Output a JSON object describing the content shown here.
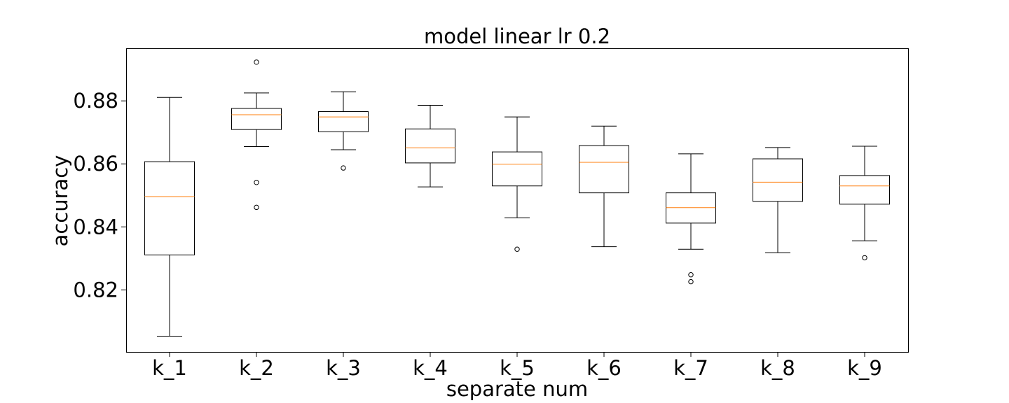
{
  "chart_data": {
    "type": "box",
    "title": "model linear lr 0.2",
    "xlabel": "separate num",
    "ylabel": "accuracy",
    "ylim": [
      0.8003,
      0.8967
    ],
    "yticks": [
      0.82,
      0.84,
      0.86,
      0.88
    ],
    "ytick_labels": [
      "0.82",
      "0.84",
      "0.86",
      "0.88"
    ],
    "grid": false,
    "colors": {
      "box": "#000000",
      "median": "#ff7f0e",
      "background": "#ffffff"
    },
    "categories": [
      "k_1",
      "k_2",
      "k_3",
      "k_4",
      "k_5",
      "k_6",
      "k_7",
      "k_8",
      "k_9"
    ],
    "boxes": [
      {
        "label": "k_1",
        "whisker_low": 0.8053,
        "q1": 0.8311,
        "median": 0.8496,
        "q3": 0.8607,
        "whisker_high": 0.8811,
        "outliers": []
      },
      {
        "label": "k_2",
        "whisker_low": 0.8655,
        "q1": 0.8709,
        "median": 0.8756,
        "q3": 0.8776,
        "whisker_high": 0.8825,
        "outliers": [
          0.8923,
          0.8541,
          0.8462
        ]
      },
      {
        "label": "k_3",
        "whisker_low": 0.8645,
        "q1": 0.8702,
        "median": 0.8749,
        "q3": 0.8766,
        "whisker_high": 0.8829,
        "outliers": [
          0.8587
        ]
      },
      {
        "label": "k_4",
        "whisker_low": 0.8527,
        "q1": 0.8603,
        "median": 0.8651,
        "q3": 0.8711,
        "whisker_high": 0.8786,
        "outliers": []
      },
      {
        "label": "k_5",
        "whisker_low": 0.8429,
        "q1": 0.853,
        "median": 0.8599,
        "q3": 0.8638,
        "whisker_high": 0.8749,
        "outliers": [
          0.8329
        ]
      },
      {
        "label": "k_6",
        "whisker_low": 0.8337,
        "q1": 0.8508,
        "median": 0.8605,
        "q3": 0.8658,
        "whisker_high": 0.872,
        "outliers": []
      },
      {
        "label": "k_7",
        "whisker_low": 0.8329,
        "q1": 0.8412,
        "median": 0.8461,
        "q3": 0.8508,
        "whisker_high": 0.8632,
        "outliers": [
          0.8248,
          0.8226
        ]
      },
      {
        "label": "k_8",
        "whisker_low": 0.8318,
        "q1": 0.8481,
        "median": 0.8542,
        "q3": 0.8616,
        "whisker_high": 0.8652,
        "outliers": []
      },
      {
        "label": "k_9",
        "whisker_low": 0.8356,
        "q1": 0.8472,
        "median": 0.853,
        "q3": 0.8563,
        "whisker_high": 0.8656,
        "outliers": [
          0.8302
        ]
      }
    ]
  }
}
